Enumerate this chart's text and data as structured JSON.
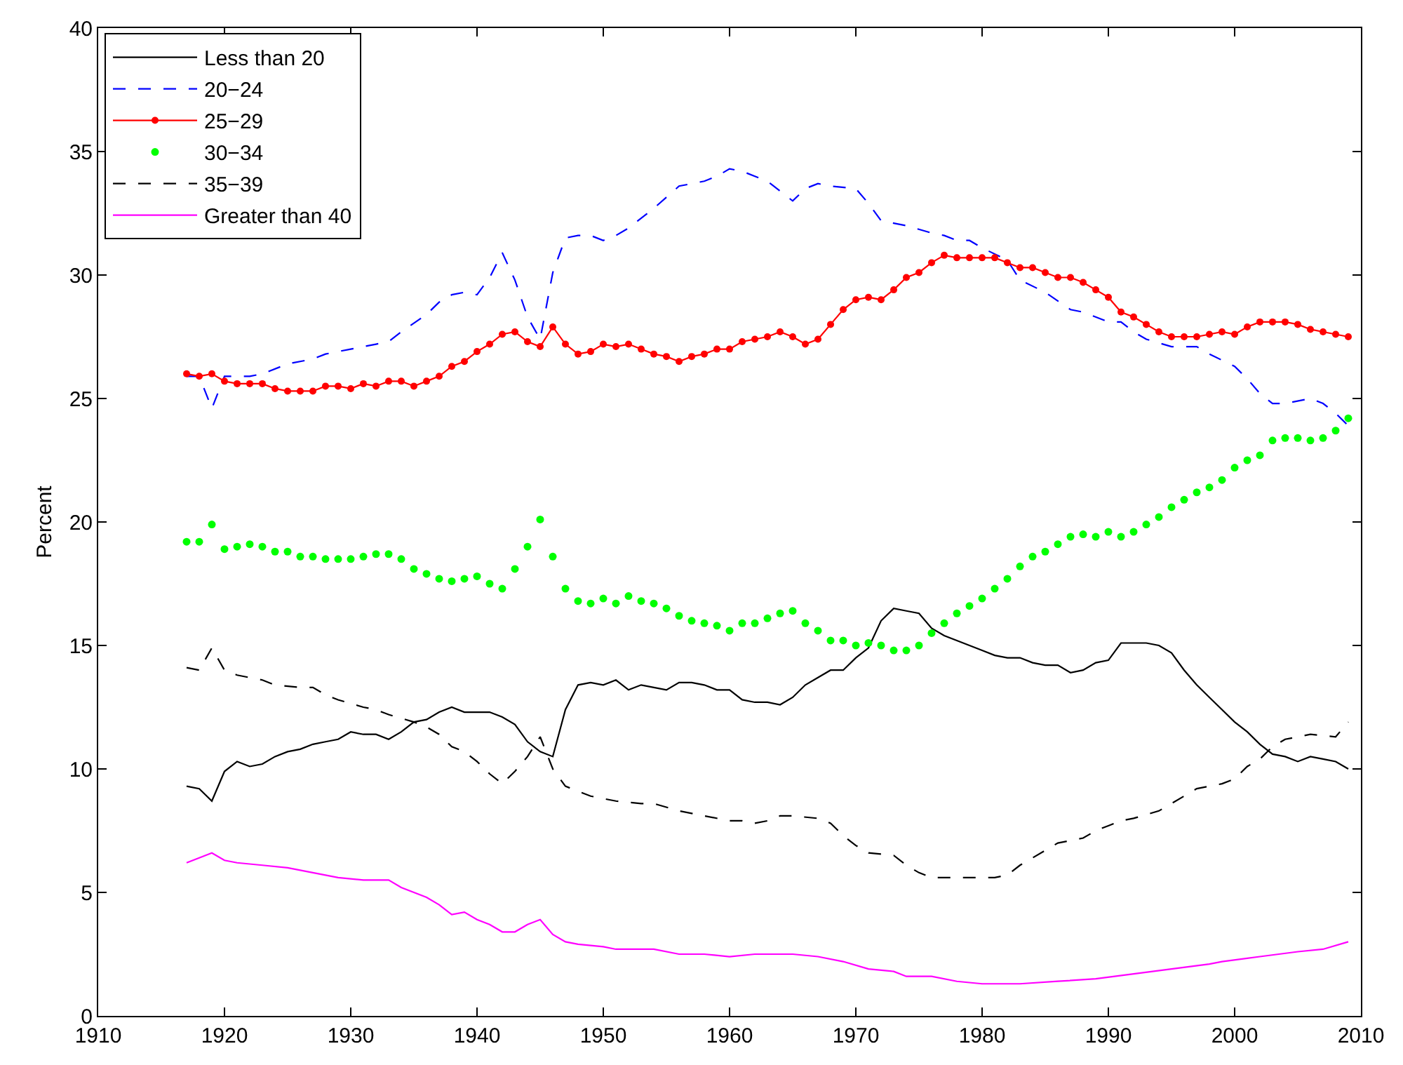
{
  "chart_data": {
    "type": "line",
    "ylabel": "Percent",
    "x": [
      1917,
      1918,
      1919,
      1920,
      1921,
      1922,
      1923,
      1924,
      1925,
      1926,
      1927,
      1928,
      1929,
      1930,
      1931,
      1932,
      1933,
      1934,
      1935,
      1936,
      1937,
      1938,
      1939,
      1940,
      1941,
      1942,
      1943,
      1944,
      1945,
      1946,
      1947,
      1948,
      1949,
      1950,
      1951,
      1952,
      1953,
      1954,
      1955,
      1956,
      1957,
      1958,
      1959,
      1960,
      1961,
      1962,
      1963,
      1964,
      1965,
      1966,
      1967,
      1968,
      1969,
      1970,
      1971,
      1972,
      1973,
      1974,
      1975,
      1976,
      1977,
      1978,
      1979,
      1980,
      1981,
      1982,
      1983,
      1984,
      1985,
      1986,
      1987,
      1988,
      1989,
      1990,
      1991,
      1992,
      1993,
      1994,
      1995,
      1996,
      1997,
      1998,
      1999,
      2000,
      2001,
      2002,
      2003,
      2004,
      2005,
      2006,
      2007,
      2008,
      2009
    ],
    "series": [
      {
        "name": "Less than 20",
        "color": "#000000",
        "line_style": "solid",
        "marker": "none",
        "values": [
          9.3,
          9.2,
          8.7,
          9.9,
          10.3,
          10.1,
          10.2,
          10.5,
          10.7,
          10.8,
          11.0,
          11.1,
          11.2,
          11.5,
          11.4,
          11.4,
          11.2,
          11.5,
          11.9,
          12.0,
          12.3,
          12.5,
          12.3,
          12.3,
          12.3,
          12.1,
          11.8,
          11.1,
          10.7,
          10.5,
          12.4,
          13.4,
          13.5,
          13.4,
          13.6,
          13.2,
          13.4,
          13.3,
          13.2,
          13.5,
          13.5,
          13.4,
          13.2,
          13.2,
          12.8,
          12.7,
          12.7,
          12.6,
          12.9,
          13.4,
          13.7,
          14.0,
          14.0,
          14.5,
          14.9,
          16.0,
          16.5,
          16.4,
          16.3,
          15.7,
          15.4,
          15.2,
          15.0,
          14.8,
          14.6,
          14.5,
          14.5,
          14.3,
          14.2,
          14.2,
          13.9,
          14.0,
          14.3,
          14.4,
          15.1,
          15.1,
          15.1,
          15.0,
          14.7,
          14.0,
          13.4,
          12.9,
          12.4,
          11.9,
          11.5,
          11.0,
          10.6,
          10.5,
          10.3,
          10.5,
          10.4,
          10.3,
          10.0
        ]
      },
      {
        "name": "20−24",
        "color": "#0000ff",
        "line_style": "dashed",
        "marker": "none",
        "x": [
          1917,
          1918,
          1919,
          1920,
          1921,
          1922,
          1923,
          1925,
          1927,
          1928,
          1930,
          1932,
          1933,
          1934,
          1936,
          1937,
          1938,
          1939,
          1940,
          1941,
          1942,
          1943,
          1944,
          1945,
          1946,
          1947,
          1948,
          1949,
          1950,
          1951,
          1952,
          1954,
          1956,
          1957,
          1958,
          1959,
          1960,
          1961,
          1962,
          1963,
          1965,
          1966,
          1967,
          1968,
          1970,
          1971,
          1972,
          1973,
          1974,
          1976,
          1977,
          1978,
          1979,
          1980,
          1982,
          1983,
          1985,
          1987,
          1988,
          1990,
          1991,
          1992,
          1993,
          1995,
          1996,
          1997,
          1998,
          2000,
          2001,
          2002,
          2003,
          2004,
          2006,
          2007,
          2008,
          2009
        ],
        "values": [
          25.9,
          25.9,
          24.6,
          25.9,
          25.9,
          25.9,
          26.0,
          26.4,
          26.6,
          26.8,
          27.0,
          27.2,
          27.3,
          27.7,
          28.4,
          28.9,
          29.2,
          29.3,
          29.2,
          29.9,
          30.9,
          29.8,
          28.3,
          27.4,
          30.1,
          31.5,
          31.6,
          31.6,
          31.4,
          31.6,
          31.9,
          32.7,
          33.6,
          33.7,
          33.8,
          34.0,
          34.3,
          34.2,
          34.0,
          33.8,
          33.0,
          33.5,
          33.7,
          33.6,
          33.5,
          32.9,
          32.2,
          32.1,
          32.0,
          31.7,
          31.6,
          31.4,
          31.4,
          31.1,
          30.6,
          29.8,
          29.3,
          28.6,
          28.5,
          28.1,
          28.1,
          27.7,
          27.4,
          27.1,
          27.1,
          27.1,
          26.8,
          26.3,
          25.8,
          25.2,
          24.8,
          24.8,
          25.0,
          24.8,
          24.4,
          23.9
        ]
      },
      {
        "name": "25−29",
        "color": "#ff0000",
        "line_style": "solid",
        "marker": "circle",
        "values": [
          26.0,
          25.9,
          26.0,
          25.7,
          25.6,
          25.6,
          25.6,
          25.4,
          25.3,
          25.3,
          25.3,
          25.5,
          25.5,
          25.4,
          25.6,
          25.5,
          25.7,
          25.7,
          25.5,
          25.7,
          25.9,
          26.3,
          26.5,
          26.9,
          27.2,
          27.6,
          27.7,
          27.3,
          27.1,
          27.9,
          27.2,
          26.8,
          26.9,
          27.2,
          27.1,
          27.2,
          27.0,
          26.8,
          26.7,
          26.5,
          26.7,
          26.8,
          27.0,
          27.0,
          27.3,
          27.4,
          27.5,
          27.7,
          27.5,
          27.2,
          27.4,
          28.0,
          28.6,
          29.0,
          29.1,
          29.0,
          29.4,
          29.9,
          30.1,
          30.5,
          30.8,
          30.7,
          30.7,
          30.7,
          30.7,
          30.5,
          30.3,
          30.3,
          30.1,
          29.9,
          29.9,
          29.7,
          29.4,
          29.1,
          28.5,
          28.3,
          28.0,
          27.7,
          27.5,
          27.5,
          27.5,
          27.6,
          27.7,
          27.6,
          27.9,
          28.1,
          28.1,
          28.1,
          28.0,
          27.8,
          27.7,
          27.6,
          27.5
        ]
      },
      {
        "name": "30−34",
        "color": "#00ff00",
        "type": "scatter",
        "marker": "circle",
        "values": [
          19.2,
          19.2,
          19.9,
          18.9,
          19.0,
          19.1,
          19.0,
          18.8,
          18.8,
          18.6,
          18.6,
          18.5,
          18.5,
          18.5,
          18.6,
          18.7,
          18.7,
          18.5,
          18.1,
          17.9,
          17.7,
          17.6,
          17.7,
          17.8,
          17.5,
          17.3,
          18.1,
          19.0,
          20.1,
          18.6,
          17.3,
          16.8,
          16.7,
          16.9,
          16.7,
          17.0,
          16.8,
          16.7,
          16.5,
          16.2,
          16.0,
          15.9,
          15.8,
          15.6,
          15.9,
          15.9,
          16.1,
          16.3,
          16.4,
          15.9,
          15.6,
          15.2,
          15.2,
          15.0,
          15.1,
          15.0,
          14.8,
          14.8,
          15.0,
          15.5,
          15.9,
          16.3,
          16.6,
          16.9,
          17.3,
          17.7,
          18.2,
          18.6,
          18.8,
          19.1,
          19.4,
          19.5,
          19.4,
          19.6,
          19.4,
          19.6,
          19.9,
          20.2,
          20.6,
          20.9,
          21.2,
          21.4,
          21.7,
          22.2,
          22.5,
          22.7,
          23.3,
          23.4,
          23.4,
          23.3,
          23.4,
          23.7,
          24.2
        ]
      },
      {
        "name": "35−39",
        "color": "#000000",
        "line_style": "dashed",
        "marker": "none",
        "x": [
          1917,
          1918,
          1919,
          1920,
          1921,
          1923,
          1924,
          1926,
          1927,
          1928,
          1929,
          1931,
          1932,
          1933,
          1935,
          1936,
          1937,
          1938,
          1939,
          1940,
          1941,
          1942,
          1943,
          1944,
          1945,
          1946,
          1947,
          1948,
          1949,
          1950,
          1951,
          1953,
          1954,
          1956,
          1957,
          1958,
          1960,
          1961,
          1962,
          1963,
          1964,
          1965,
          1967,
          1968,
          1969,
          1970,
          1971,
          1973,
          1974,
          1975,
          1976,
          1978,
          1979,
          1981,
          1982,
          1983,
          1984,
          1986,
          1988,
          1989,
          1990,
          1991,
          1992,
          1994,
          1995,
          1996,
          1997,
          1999,
          2000,
          2001,
          2002,
          2003,
          2004,
          2006,
          2008,
          2009
        ],
        "values": [
          14.1,
          14.0,
          14.9,
          14.0,
          13.8,
          13.6,
          13.4,
          13.3,
          13.3,
          13.0,
          12.8,
          12.5,
          12.4,
          12.2,
          11.9,
          11.7,
          11.4,
          10.9,
          10.7,
          10.3,
          9.8,
          9.4,
          9.9,
          10.5,
          11.3,
          10.0,
          9.3,
          9.1,
          8.9,
          8.8,
          8.7,
          8.6,
          8.6,
          8.3,
          8.2,
          8.1,
          7.9,
          7.9,
          7.8,
          7.9,
          8.1,
          8.1,
          8.0,
          7.8,
          7.3,
          6.9,
          6.6,
          6.5,
          6.1,
          5.8,
          5.6,
          5.6,
          5.6,
          5.6,
          5.7,
          6.1,
          6.4,
          7.0,
          7.2,
          7.5,
          7.7,
          7.9,
          8.0,
          8.3,
          8.6,
          8.9,
          9.2,
          9.4,
          9.6,
          10.1,
          10.4,
          10.9,
          11.2,
          11.4,
          11.3,
          11.9
        ]
      },
      {
        "name": "Greater than 40",
        "color": "#ff00ff",
        "line_style": "solid",
        "marker": "none",
        "x": [
          1917,
          1918,
          1919,
          1920,
          1921,
          1923,
          1925,
          1927,
          1928,
          1929,
          1931,
          1933,
          1934,
          1936,
          1937,
          1938,
          1939,
          1940,
          1941,
          1942,
          1943,
          1944,
          1945,
          1946,
          1947,
          1948,
          1950,
          1951,
          1954,
          1956,
          1958,
          1960,
          1962,
          1964,
          1965,
          1967,
          1969,
          1971,
          1973,
          1974,
          1976,
          1978,
          1980,
          1983,
          1986,
          1989,
          1992,
          1995,
          1998,
          1999,
          2002,
          2005,
          2007,
          2009
        ],
        "values": [
          6.2,
          6.4,
          6.6,
          6.3,
          6.2,
          6.1,
          6.0,
          5.8,
          5.7,
          5.6,
          5.5,
          5.5,
          5.2,
          4.8,
          4.5,
          4.1,
          4.2,
          3.9,
          3.7,
          3.4,
          3.4,
          3.7,
          3.9,
          3.3,
          3.0,
          2.9,
          2.8,
          2.7,
          2.7,
          2.5,
          2.5,
          2.4,
          2.5,
          2.5,
          2.5,
          2.4,
          2.2,
          1.9,
          1.8,
          1.6,
          1.6,
          1.4,
          1.3,
          1.3,
          1.4,
          1.5,
          1.7,
          1.9,
          2.1,
          2.2,
          2.4,
          2.6,
          2.7,
          3.0
        ]
      }
    ],
    "xlim": [
      1910,
      2010
    ],
    "xticks": [
      1910,
      1920,
      1930,
      1940,
      1950,
      1960,
      1970,
      1980,
      1990,
      2000,
      2010
    ],
    "ylim": [
      0,
      40
    ],
    "yticks": [
      0,
      5,
      10,
      15,
      20,
      25,
      30,
      35,
      40
    ],
    "legend": "top left"
  }
}
